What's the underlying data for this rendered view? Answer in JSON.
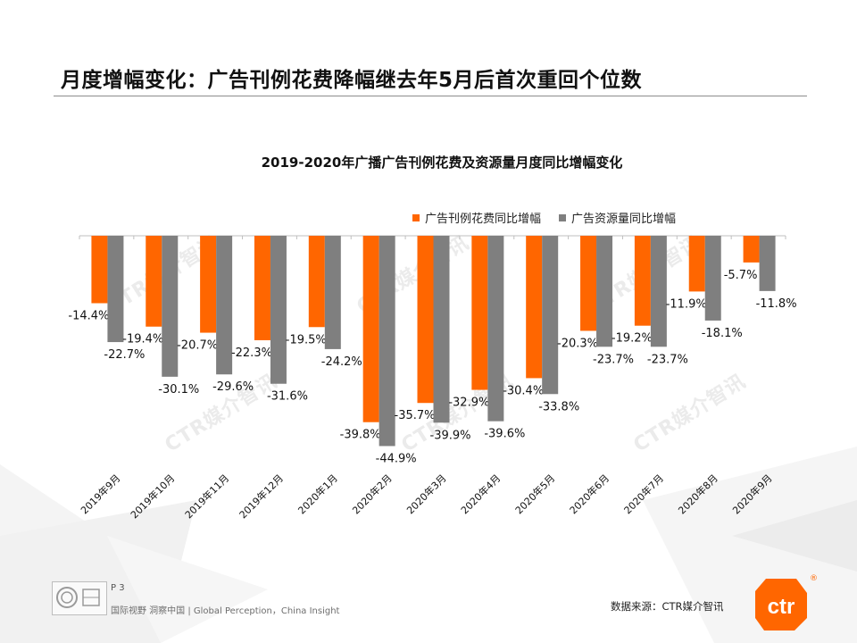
{
  "page": {
    "title": "月度增幅变化：广告刊例花费降幅继去年5月后首次重回个位数",
    "page_number": "P 3",
    "footer_tagline": "国际视野 洞察中国 | Global Perception，China Insight",
    "source": "数据来源：CTR媒介智讯",
    "logo_text": "ctr",
    "registered_mark": "®",
    "watermark_text": "CTR媒介智讯",
    "colors": {
      "accent": "#ff6600",
      "gray_series": "#7f7f7f"
    }
  },
  "chart_data": {
    "type": "bar",
    "title": "2019-2020年广播广告刊例花费及资源量月度同比增幅变化",
    "categories": [
      "2019年9月",
      "2019年10月",
      "2019年11月",
      "2019年12月",
      "2020年1月",
      "2020年2月",
      "2020年3月",
      "2020年4月",
      "2020年5月",
      "2020年6月",
      "2020年7月",
      "2020年8月",
      "2020年9月"
    ],
    "series": [
      {
        "name": "广告刊例花费同比增幅",
        "color": "#ff6600",
        "values": [
          -14.4,
          -19.4,
          -20.7,
          -22.3,
          -19.5,
          -39.8,
          -35.7,
          -32.9,
          -30.4,
          -20.3,
          -19.2,
          -11.9,
          -5.7
        ]
      },
      {
        "name": "广告资源量同比增幅",
        "color": "#7f7f7f",
        "values": [
          -22.7,
          -30.1,
          -29.6,
          -31.6,
          -24.2,
          -44.9,
          -39.9,
          -39.6,
          -33.8,
          -23.7,
          -23.7,
          -18.1,
          -11.8
        ]
      }
    ],
    "value_suffix": "%",
    "ylim": [
      -45,
      0
    ],
    "xlabel": "",
    "ylabel": "",
    "legend_position": "top-right",
    "grid": false
  }
}
